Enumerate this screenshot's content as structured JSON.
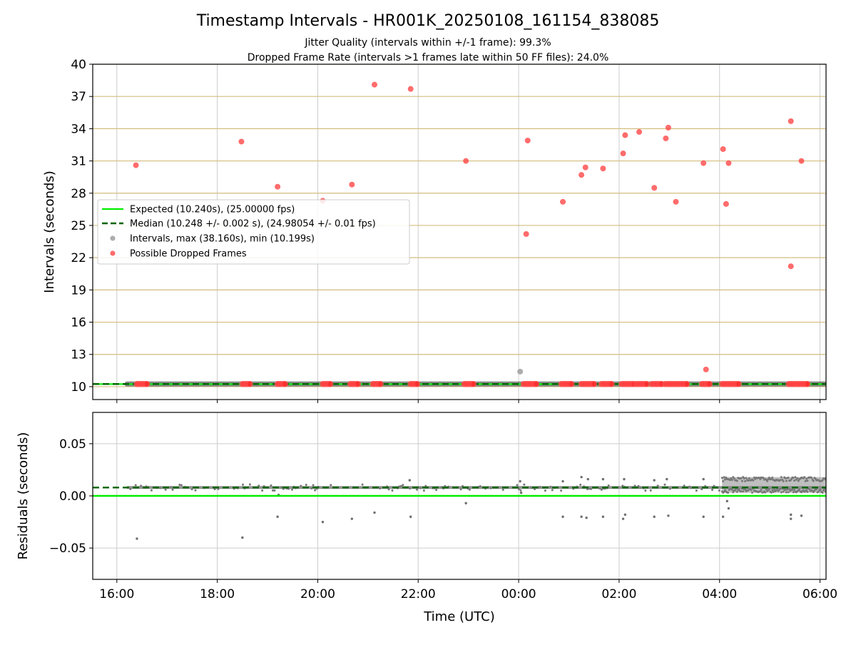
{
  "chart_data": [
    {
      "type": "scatter",
      "title": "Timestamp Intervals - HR001K_20250108_161154_838085",
      "subtitle_lines": [
        "Jitter Quality (intervals within +/-1 frame): 99.3%",
        "Dropped Frame Rate (intervals >1 frames late within 50 FF files): 24.0%"
      ],
      "xlabel": "",
      "ylabel": "Intervals (seconds)",
      "x_axis": "time (UTC), hours after 00:00 on first day; ticks every 2 h",
      "xlim": [
        15.52,
        30.12
      ],
      "ylim": [
        8.8,
        40
      ],
      "yticks": [
        10,
        13,
        16,
        19,
        22,
        25,
        28,
        31,
        34,
        37,
        40
      ],
      "xtick_labels": [
        "16:00",
        "18:00",
        "20:00",
        "22:00",
        "00:00",
        "02:00",
        "04:00",
        "06:00"
      ],
      "xtick_values": [
        16,
        18,
        20,
        22,
        24,
        26,
        28,
        30
      ],
      "grid": "horizontal lines at y ticks (tan), vertical lines at x ticks (gray)",
      "legend_position": "center-left",
      "legend": [
        "Expected (10.240s), (25.00000 fps)",
        "Median (10.248 +/- 0.002 s), (24.98054 +/- 0.01 fps)",
        "Intervals, max (38.160s), min (10.199s)",
        "Possible Dropped Frames"
      ],
      "expected_value": 10.24,
      "median_value": 10.248,
      "intervals_band": {
        "x_start": 16.2,
        "x_end": 30.12,
        "y": 10.248
      },
      "interval_outlier_points": [
        {
          "x": 24.03,
          "y": 11.4
        }
      ],
      "dropped_frame_points": [
        {
          "x": 16.38,
          "y": 30.6
        },
        {
          "x": 18.48,
          "y": 32.8
        },
        {
          "x": 19.2,
          "y": 28.6
        },
        {
          "x": 20.1,
          "y": 27.3
        },
        {
          "x": 20.68,
          "y": 28.8
        },
        {
          "x": 21.13,
          "y": 38.1
        },
        {
          "x": 21.85,
          "y": 37.7
        },
        {
          "x": 22.95,
          "y": 31.0
        },
        {
          "x": 24.15,
          "y": 24.2
        },
        {
          "x": 24.18,
          "y": 32.9
        },
        {
          "x": 24.88,
          "y": 27.2
        },
        {
          "x": 25.25,
          "y": 29.7
        },
        {
          "x": 25.33,
          "y": 30.4
        },
        {
          "x": 25.68,
          "y": 30.3
        },
        {
          "x": 26.08,
          "y": 31.7
        },
        {
          "x": 26.12,
          "y": 33.4
        },
        {
          "x": 26.4,
          "y": 33.7
        },
        {
          "x": 26.7,
          "y": 28.5
        },
        {
          "x": 26.93,
          "y": 33.1
        },
        {
          "x": 26.98,
          "y": 34.1
        },
        {
          "x": 27.13,
          "y": 27.2
        },
        {
          "x": 27.68,
          "y": 30.8
        },
        {
          "x": 27.73,
          "y": 11.6
        },
        {
          "x": 28.07,
          "y": 32.1
        },
        {
          "x": 28.13,
          "y": 27.0
        },
        {
          "x": 28.18,
          "y": 30.8
        },
        {
          "x": 29.42,
          "y": 34.7
        },
        {
          "x": 29.42,
          "y": 21.2
        },
        {
          "x": 29.63,
          "y": 31.0
        }
      ],
      "dropped_frame_clusters_at_baseline": [
        [
          16.4,
          16.6
        ],
        [
          18.5,
          18.65
        ],
        [
          19.2,
          19.35
        ],
        [
          20.1,
          20.25
        ],
        [
          20.65,
          20.8
        ],
        [
          21.1,
          21.25
        ],
        [
          21.85,
          21.98
        ],
        [
          22.92,
          23.1
        ],
        [
          24.1,
          24.35
        ],
        [
          24.85,
          25.05
        ],
        [
          25.25,
          25.5
        ],
        [
          25.65,
          25.85
        ],
        [
          26.05,
          26.3
        ],
        [
          26.35,
          26.55
        ],
        [
          26.65,
          26.85
        ],
        [
          26.92,
          27.35
        ],
        [
          27.65,
          27.8
        ],
        [
          28.05,
          28.38
        ],
        [
          29.38,
          29.6
        ],
        [
          29.6,
          29.75
        ]
      ]
    },
    {
      "type": "scatter",
      "xlabel": "Time (UTC)",
      "ylabel": "Residuals (seconds)",
      "xlim": [
        15.52,
        30.12
      ],
      "ylim": [
        -0.08,
        0.08
      ],
      "yticks": [
        -0.05,
        0.0,
        0.05
      ],
      "ytick_labels": [
        "−0.05",
        "0.00",
        "0.05"
      ],
      "xtick_labels": [
        "16:00",
        "18:00",
        "20:00",
        "22:00",
        "00:00",
        "02:00",
        "04:00",
        "06:00"
      ],
      "xtick_values": [
        16,
        18,
        20,
        22,
        24,
        26,
        28,
        30
      ],
      "grid": "light gray at x ticks and y ticks",
      "expected_residual": 0.0,
      "median_residual": 0.008,
      "residual_band": {
        "x_start": 16.2,
        "x_end": 30.12,
        "y": 0.008
      },
      "dense_region": {
        "x_start": 28.05,
        "x_end": 30.12,
        "y_low": 0.003,
        "y_high": 0.018
      },
      "residual_points": [
        {
          "x": 16.4,
          "y": -0.041
        },
        {
          "x": 18.5,
          "y": -0.04
        },
        {
          "x": 19.2,
          "y": -0.02
        },
        {
          "x": 19.22,
          "y": 0.001
        },
        {
          "x": 20.1,
          "y": -0.025
        },
        {
          "x": 20.68,
          "y": -0.022
        },
        {
          "x": 21.13,
          "y": -0.016
        },
        {
          "x": 21.85,
          "y": -0.02
        },
        {
          "x": 21.83,
          "y": 0.015
        },
        {
          "x": 22.95,
          "y": -0.007
        },
        {
          "x": 24.03,
          "y": 0.014
        },
        {
          "x": 24.05,
          "y": 0.003
        },
        {
          "x": 24.88,
          "y": -0.02
        },
        {
          "x": 24.88,
          "y": 0.014
        },
        {
          "x": 25.25,
          "y": -0.02
        },
        {
          "x": 25.25,
          "y": 0.018
        },
        {
          "x": 25.35,
          "y": -0.021
        },
        {
          "x": 25.38,
          "y": 0.016
        },
        {
          "x": 25.68,
          "y": -0.02
        },
        {
          "x": 25.68,
          "y": 0.016
        },
        {
          "x": 26.08,
          "y": -0.022
        },
        {
          "x": 26.12,
          "y": -0.018
        },
        {
          "x": 26.1,
          "y": 0.016
        },
        {
          "x": 26.7,
          "y": -0.02
        },
        {
          "x": 26.7,
          "y": 0.015
        },
        {
          "x": 26.98,
          "y": -0.019
        },
        {
          "x": 26.95,
          "y": 0.016
        },
        {
          "x": 27.68,
          "y": -0.02
        },
        {
          "x": 27.68,
          "y": 0.016
        },
        {
          "x": 28.07,
          "y": -0.02
        },
        {
          "x": 28.18,
          "y": -0.012
        },
        {
          "x": 28.15,
          "y": -0.005
        },
        {
          "x": 29.42,
          "y": -0.018
        },
        {
          "x": 29.42,
          "y": -0.022
        },
        {
          "x": 29.63,
          "y": -0.019
        }
      ]
    }
  ]
}
